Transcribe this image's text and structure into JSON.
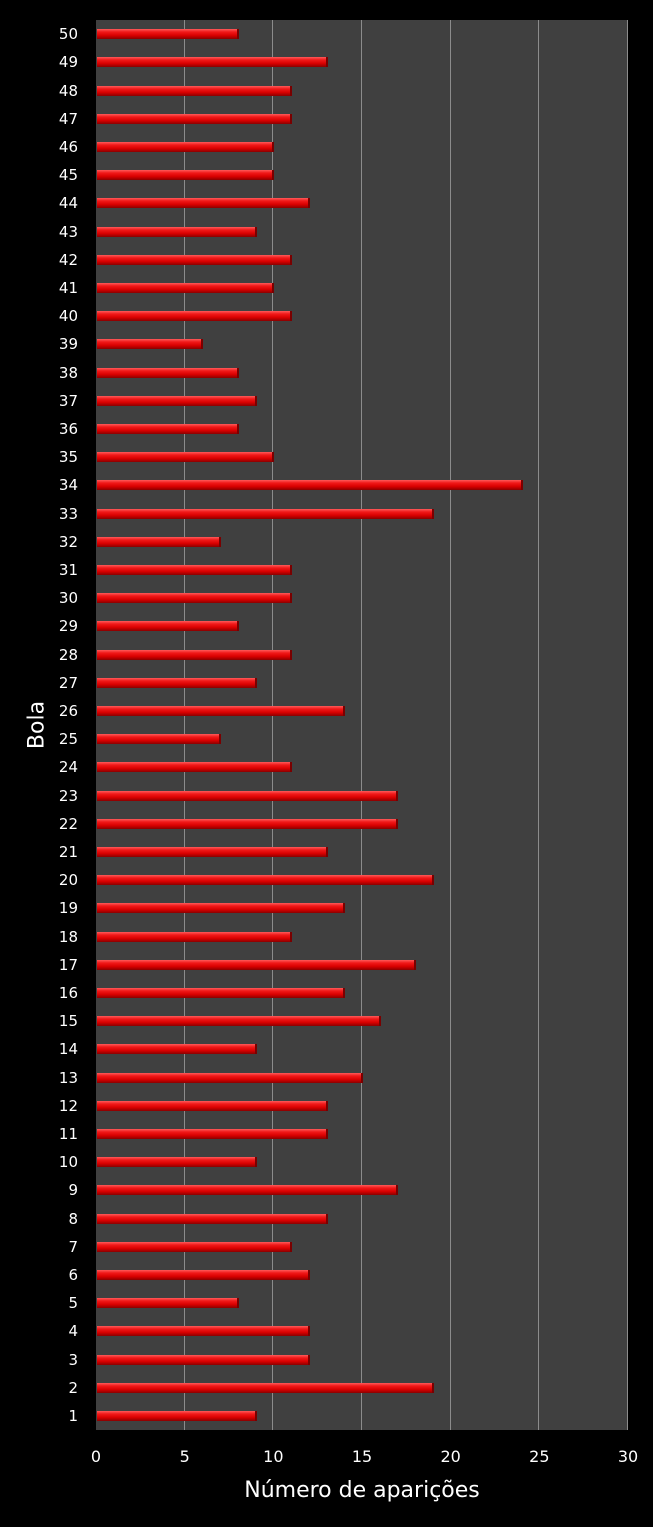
{
  "chart_data": {
    "type": "bar",
    "orientation": "horizontal",
    "title": "",
    "xlabel": "Número de aparições",
    "ylabel": "Bola",
    "xlim": [
      0,
      30
    ],
    "xticks": [
      0,
      5,
      10,
      15,
      20,
      25,
      30
    ],
    "grid": true,
    "legend": null,
    "categories": [
      "1",
      "2",
      "3",
      "4",
      "5",
      "6",
      "7",
      "8",
      "9",
      "10",
      "11",
      "12",
      "13",
      "14",
      "15",
      "16",
      "17",
      "18",
      "19",
      "20",
      "21",
      "22",
      "23",
      "24",
      "25",
      "26",
      "27",
      "28",
      "29",
      "30",
      "31",
      "32",
      "33",
      "34",
      "35",
      "36",
      "37",
      "38",
      "39",
      "40",
      "41",
      "42",
      "43",
      "44",
      "45",
      "46",
      "47",
      "48",
      "49",
      "50"
    ],
    "values": [
      9,
      19,
      12,
      12,
      8,
      12,
      11,
      13,
      17,
      9,
      13,
      13,
      15,
      9,
      16,
      14,
      18,
      11,
      14,
      19,
      13,
      17,
      17,
      11,
      7,
      14,
      9,
      11,
      8,
      11,
      11,
      7,
      19,
      24,
      10,
      8,
      9,
      8,
      6,
      11,
      10,
      11,
      9,
      12,
      10,
      10,
      11,
      11,
      13,
      8
    ],
    "colors": {
      "bar": "#e00000",
      "plot_background": "#404040",
      "page_background": "#000000",
      "grid": "#8c8c8c",
      "text": "#ffffff"
    }
  }
}
